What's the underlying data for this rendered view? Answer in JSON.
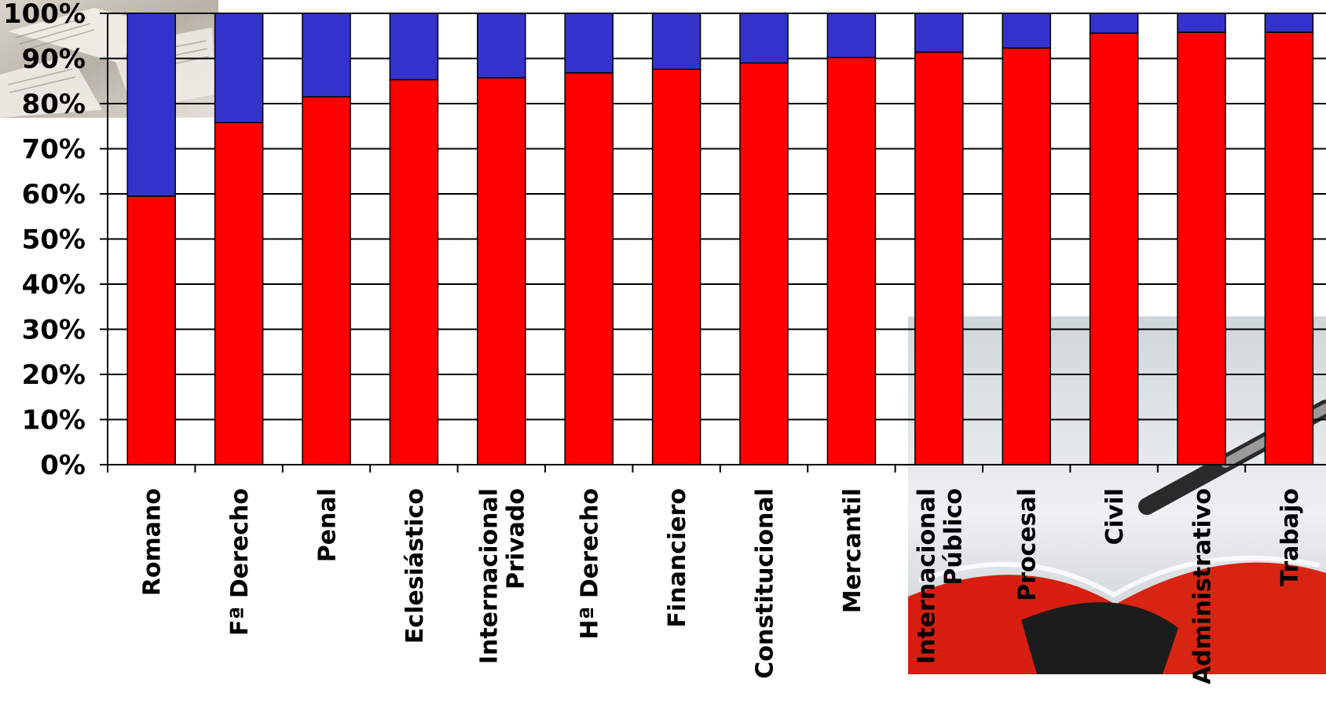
{
  "chart_data": {
    "type": "bar",
    "stacked": true,
    "percent": true,
    "categories": [
      [
        "Romano"
      ],
      [
        "Fª Derecho"
      ],
      [
        "Penal"
      ],
      [
        "Eclesiástico"
      ],
      [
        "Internacional",
        "Privado"
      ],
      [
        "Hª Derecho"
      ],
      [
        "Financiero"
      ],
      [
        "Constitucional"
      ],
      [
        "Mercantil"
      ],
      [
        "Internacional",
        "Público"
      ],
      [
        "Procesal"
      ],
      [
        "Civil"
      ],
      [
        "Administrativo"
      ],
      [
        "Trabajo"
      ]
    ],
    "series": [
      {
        "color": "#ff0000",
        "values": [
          59.5,
          75.8,
          81.5,
          85.3,
          85.7,
          86.8,
          87.6,
          89.0,
          90.2,
          91.4,
          92.3,
          95.6,
          95.8,
          95.8
        ]
      },
      {
        "color": "#3333cc",
        "values": [
          40.5,
          24.2,
          18.5,
          14.7,
          14.3,
          13.2,
          12.4,
          11.0,
          9.8,
          8.6,
          7.7,
          4.4,
          4.2,
          4.2
        ]
      }
    ],
    "ylim": [
      0,
      100
    ],
    "yticks": [
      "0%",
      "10%",
      "20%",
      "30%",
      "40%",
      "50%",
      "60%",
      "70%",
      "80%",
      "90%",
      "100%"
    ],
    "grid": true
  }
}
